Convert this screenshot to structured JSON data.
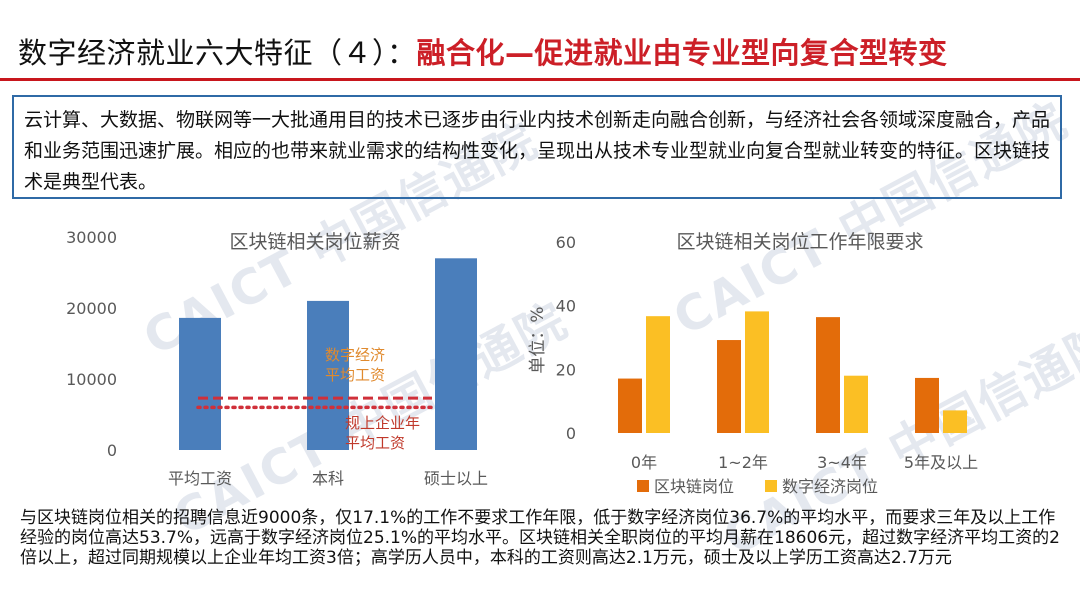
{
  "header": {
    "title_prefix": "数字经济就业六大特征（４）：",
    "title_highlight": "融合化—促进就业由专业型向复合型转变"
  },
  "intro": {
    "text": "云计算、大数据、物联网等一大批通用目的技术已逐步由行业内技术创新走向融合创新，与经济社会各领域深度融合，产品和业务范围迅速扩展。相应的也带来就业需求的结构性变化，呈现出从技术专业型就业向复合型就业转变的特征。区块链技术是典型代表。"
  },
  "watermarks": [
    "CAICT 中国信通院",
    "CAICT 中国信通院",
    "CAICT 中国信通院",
    "CAICT 中国信通院"
  ],
  "bottom": {
    "text": "与区块链岗位相关的招聘信息近9000条，仅17.1%的工作不要求工作年限，低于数字经济岗位36.7%的平均水平，而要求三年及以上工作经验的岗位高达53.7%，远高于数字经济岗位25.1%的平均水平。区块链相关全职岗位的平均月薪在18606元，超过数字经济平均工资的2倍以上，超过同期规模以上企业年均工资3倍；高学历人员中，本科的工资则高达2.1万元，硕士及以上学历工资高达2.7万元"
  },
  "chart_data": [
    {
      "type": "bar",
      "title": "区块链相关岗位薪资",
      "categories": [
        "平均工资",
        "本科",
        "硕士以上"
      ],
      "values": [
        18606,
        21000,
        27000
      ],
      "ylim": [
        0,
        30000
      ],
      "yticks": [
        "0",
        "10000",
        "20000",
        "30000"
      ],
      "color": "#4a7ebb",
      "reference_lines": [
        {
          "label_lines": [
            "数字经济",
            "平均工资"
          ],
          "value": 7300,
          "style": "dashed",
          "color": "#d0303a",
          "label_color": "#e08a2e"
        },
        {
          "label_lines": [
            "规上企业年",
            "平均工资"
          ],
          "value": 6000,
          "style": "dotted",
          "color": "#d0303a",
          "label_color": "#c0392b"
        }
      ]
    },
    {
      "type": "bar",
      "title": "区块链相关岗位工作年限要求",
      "ylabel": "单位：%",
      "categories": [
        "0年",
        "1~2年",
        "3~4年",
        "5年及以上"
      ],
      "ylim": [
        0,
        60
      ],
      "yticks": [
        "0",
        "20",
        "40",
        "60"
      ],
      "legend": "bottom",
      "series": [
        {
          "name": "区块链岗位",
          "color": "#e36c0a",
          "values": [
            17.1,
            29.2,
            36.4,
            17.3
          ]
        },
        {
          "name": "数字经济岗位",
          "color": "#fbbf24",
          "values": [
            36.7,
            38.2,
            18.0,
            7.1
          ]
        }
      ]
    }
  ]
}
